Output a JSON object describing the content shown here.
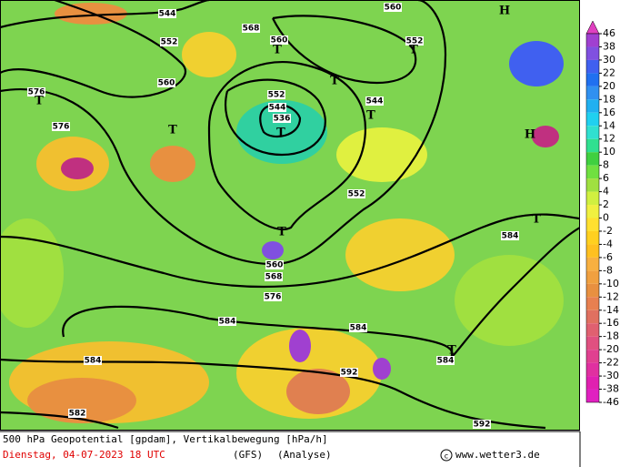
{
  "map": {
    "contour_labels": [
      544,
      552,
      560,
      568,
      560,
      576,
      576,
      552,
      544,
      536,
      544,
      552,
      560,
      552,
      560,
      568,
      576,
      584,
      584,
      584,
      584,
      584,
      592,
      592,
      582
    ],
    "centers": [
      "H",
      "T",
      "T",
      "T",
      "T",
      "T",
      "T",
      "T",
      "H",
      "T",
      "T",
      "T"
    ]
  },
  "legend": {
    "labels": [
      46,
      38,
      30,
      22,
      20,
      18,
      16,
      14,
      12,
      10,
      8,
      6,
      4,
      2,
      0,
      -2,
      -4,
      -6,
      -8,
      -10,
      -12,
      -14,
      -16,
      -18,
      -20,
      -22,
      -30,
      -38,
      -46
    ],
    "colors": [
      "#a040d0",
      "#8050e0",
      "#4060f0",
      "#2070f0",
      "#3090f0",
      "#20b0f0",
      "#20d0f0",
      "#30e0d0",
      "#30e090",
      "#40d040",
      "#70e040",
      "#a0e040",
      "#d0f040",
      "#f0f040",
      "#ffe030",
      "#ffd020",
      "#ffc020",
      "#f8b040",
      "#f0a040",
      "#e89040",
      "#e88050",
      "#e07060",
      "#e06070",
      "#e05080",
      "#e04090",
      "#e030a0",
      "#e020b0",
      "#e020c0"
    ]
  },
  "footer": {
    "title": "500 hPa Geopotential [gpdam], Vertikalbewegung [hPa/h]",
    "date": "Dienstag, 04-07-2023  18 UTC",
    "model": "(GFS)",
    "run": "(Analyse)",
    "credit": "www.wetter3.de"
  }
}
